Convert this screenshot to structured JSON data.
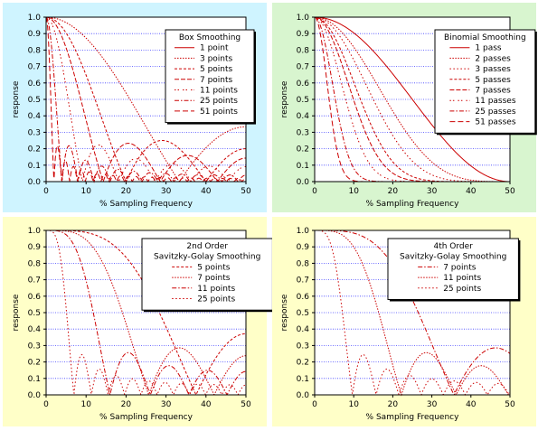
{
  "colors": {
    "line": "#cc0000",
    "grid": "#4444ff",
    "bg_top_left": "#cff4ff",
    "bg_top_right": "#d8f5cf",
    "bg_bottom": "#ffffc8"
  },
  "chart_data": [
    {
      "type": "line",
      "title": "",
      "xlabel": "% Sampling Frequency",
      "ylabel": "response",
      "xlim": [
        0,
        50
      ],
      "ylim": [
        0,
        1
      ],
      "xticks": [
        "0",
        "10",
        "20",
        "30",
        "40",
        "50"
      ],
      "yticks": [
        "0.0",
        "0.1",
        "0.2",
        "0.3",
        "0.4",
        "0.5",
        "0.6",
        "0.7",
        "0.8",
        "0.9",
        "1.0"
      ],
      "grid": "horizontal",
      "background": "bg_top_left",
      "legend_position": "top-right",
      "legend_title": [
        "Box Smoothing"
      ],
      "series": [
        {
          "name": "1 point",
          "kind": "box",
          "n": 1,
          "dash": ""
        },
        {
          "name": "3 points",
          "kind": "box",
          "n": 3,
          "dash": "1.5,1.5"
        },
        {
          "name": "5 points",
          "kind": "box",
          "n": 5,
          "dash": "3,2"
        },
        {
          "name": "7 points",
          "kind": "box",
          "n": 7,
          "dash": "5,2"
        },
        {
          "name": "11 points",
          "kind": "box",
          "n": 11,
          "dash": "1.5,2,1.5,4"
        },
        {
          "name": "25 points",
          "kind": "box",
          "n": 25,
          "dash": "5,2,1.5,2"
        },
        {
          "name": "51 points",
          "kind": "box",
          "n": 51,
          "dash": "6,3"
        }
      ]
    },
    {
      "type": "line",
      "title": "",
      "xlabel": "% Sampling Frequency",
      "ylabel": "response",
      "xlim": [
        0,
        50
      ],
      "ylim": [
        0,
        1
      ],
      "xticks": [
        "0",
        "10",
        "20",
        "30",
        "40",
        "50"
      ],
      "yticks": [
        "0.0",
        "0.1",
        "0.2",
        "0.3",
        "0.4",
        "0.5",
        "0.6",
        "0.7",
        "0.8",
        "0.9",
        "1.0"
      ],
      "grid": "horizontal",
      "background": "bg_top_right",
      "legend_position": "top-right",
      "legend_title": [
        "Binomial Smoothing"
      ],
      "series": [
        {
          "name": "1 pass",
          "kind": "binomial",
          "n": 1,
          "dash": ""
        },
        {
          "name": "2 passes",
          "kind": "binomial",
          "n": 2,
          "dash": "1.5,1.5"
        },
        {
          "name": "3 passes",
          "kind": "binomial",
          "n": 3,
          "dash": "1.5,2.5"
        },
        {
          "name": "5 passes",
          "kind": "binomial",
          "n": 5,
          "dash": "3,2"
        },
        {
          "name": "7 passes",
          "kind": "binomial",
          "n": 7,
          "dash": "5,2"
        },
        {
          "name": "11 passes",
          "kind": "binomial",
          "n": 11,
          "dash": "1.5,2,1.5,4"
        },
        {
          "name": "25 passes",
          "kind": "binomial",
          "n": 25,
          "dash": "5,2,1.5,2"
        },
        {
          "name": "51 passes",
          "kind": "binomial",
          "n": 51,
          "dash": "6,3"
        }
      ]
    },
    {
      "type": "line",
      "title": "",
      "xlabel": "% Sampling Frequency",
      "ylabel": "response",
      "xlim": [
        0,
        50
      ],
      "ylim": [
        0,
        1
      ],
      "xticks": [
        "0",
        "10",
        "20",
        "30",
        "40",
        "50"
      ],
      "yticks": [
        "0.0",
        "0.1",
        "0.2",
        "0.3",
        "0.4",
        "0.5",
        "0.6",
        "0.7",
        "0.8",
        "0.9",
        "1.0"
      ],
      "grid": "horizontal",
      "background": "bg_bottom",
      "legend_position": "top-right",
      "legend_title": [
        "2nd Order",
        "Savitzky-Golay Smoothing"
      ],
      "series": [
        {
          "name": "5 points",
          "kind": "sg2",
          "n": 5,
          "dash": "3,2"
        },
        {
          "name": "7 points",
          "kind": "sg2",
          "n": 7,
          "dash": "1.5,1.5"
        },
        {
          "name": "11 points",
          "kind": "sg2",
          "n": 11,
          "dash": "5,2,1.5,2"
        },
        {
          "name": "25 points",
          "kind": "sg2",
          "n": 25,
          "dash": "1.5,2.5"
        }
      ]
    },
    {
      "type": "line",
      "title": "",
      "xlabel": "% Sampling Frequency",
      "ylabel": "response",
      "xlim": [
        0,
        50
      ],
      "ylim": [
        0,
        1
      ],
      "xticks": [
        "0",
        "10",
        "20",
        "30",
        "40",
        "50"
      ],
      "yticks": [
        "0.0",
        "0.1",
        "0.2",
        "0.3",
        "0.4",
        "0.5",
        "0.6",
        "0.7",
        "0.8",
        "0.9",
        "1.0"
      ],
      "grid": "horizontal",
      "background": "bg_bottom",
      "legend_position": "top-right",
      "legend_title": [
        "4th Order",
        "Savitzky-Golay Smoothing"
      ],
      "series": [
        {
          "name": "7 points",
          "kind": "sg4",
          "n": 7,
          "dash": "5,2,1.5,2"
        },
        {
          "name": "11 points",
          "kind": "sg4",
          "n": 11,
          "dash": "1.5,1.5"
        },
        {
          "name": "25 points",
          "kind": "sg4",
          "n": 25,
          "dash": "1.5,2.5"
        }
      ]
    }
  ]
}
